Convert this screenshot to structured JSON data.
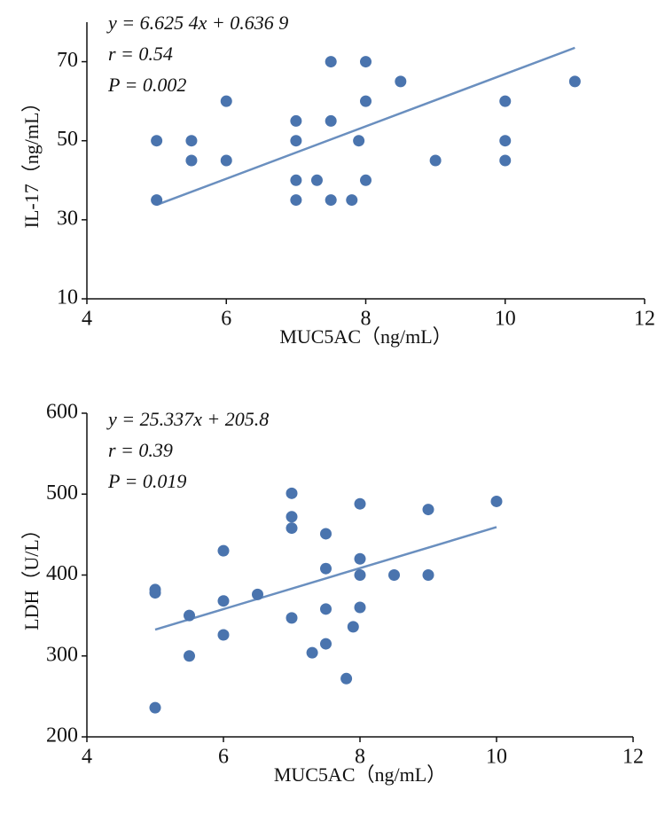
{
  "chart_data": [
    {
      "type": "scatter",
      "annotations": [
        "y = 6.625 4x + 0.636 9",
        "r = 0.54",
        "P = 0.002"
      ],
      "x_label": "MUC5AC（ng/mL）",
      "y_label": "IL-17（ng/mL）",
      "xlim": [
        4,
        12
      ],
      "xticks": [
        4,
        6,
        8,
        10,
        12
      ],
      "ylim": [
        10,
        80
      ],
      "yticks": [
        10,
        30,
        50,
        70
      ],
      "color": "#4a74ae",
      "x": [
        5,
        5,
        5.5,
        5.5,
        6,
        6,
        7,
        7,
        7,
        7,
        7.3,
        7.5,
        7.5,
        7.5,
        7.8,
        7.9,
        8,
        8,
        8,
        8.5,
        9,
        10,
        10,
        10,
        11
      ],
      "values": [
        35,
        50,
        50,
        45,
        60,
        45,
        55,
        50,
        40,
        35,
        40,
        70,
        55,
        35,
        35,
        50,
        70,
        60,
        40,
        65,
        45,
        60,
        50,
        45,
        65
      ],
      "trendline": {
        "x": [
          5,
          11
        ],
        "y": [
          33.76,
          73.52
        ],
        "color": "#6a8fbf"
      }
    },
    {
      "type": "scatter",
      "annotations": [
        "y = 25.337x + 205.8",
        "r = 0.39",
        "P = 0.019"
      ],
      "x_label": "MUC5AC（ng/mL）",
      "y_label": "LDH（U/L）",
      "xlim": [
        4,
        12
      ],
      "xticks": [
        4,
        6,
        8,
        10,
        12
      ],
      "ylim": [
        200,
        600
      ],
      "yticks": [
        200,
        300,
        400,
        500,
        600
      ],
      "color": "#4a74ae",
      "x": [
        5,
        5,
        5,
        5.5,
        5.5,
        6,
        6,
        6,
        6.5,
        7,
        7,
        7,
        7,
        7.3,
        7.5,
        7.5,
        7.5,
        7.5,
        7.8,
        7.9,
        8,
        8,
        8,
        8,
        8.5,
        9,
        9,
        10
      ],
      "values": [
        236,
        382,
        378,
        350,
        300,
        430,
        368,
        326,
        376,
        501,
        472,
        458,
        347,
        304,
        451,
        408,
        358,
        315,
        272,
        336,
        488,
        420,
        400,
        360,
        400,
        481,
        400,
        491
      ],
      "trendline": {
        "x": [
          5,
          10
        ],
        "y": [
          332.5,
          459.2
        ],
        "color": "#6a8fbf"
      }
    }
  ]
}
